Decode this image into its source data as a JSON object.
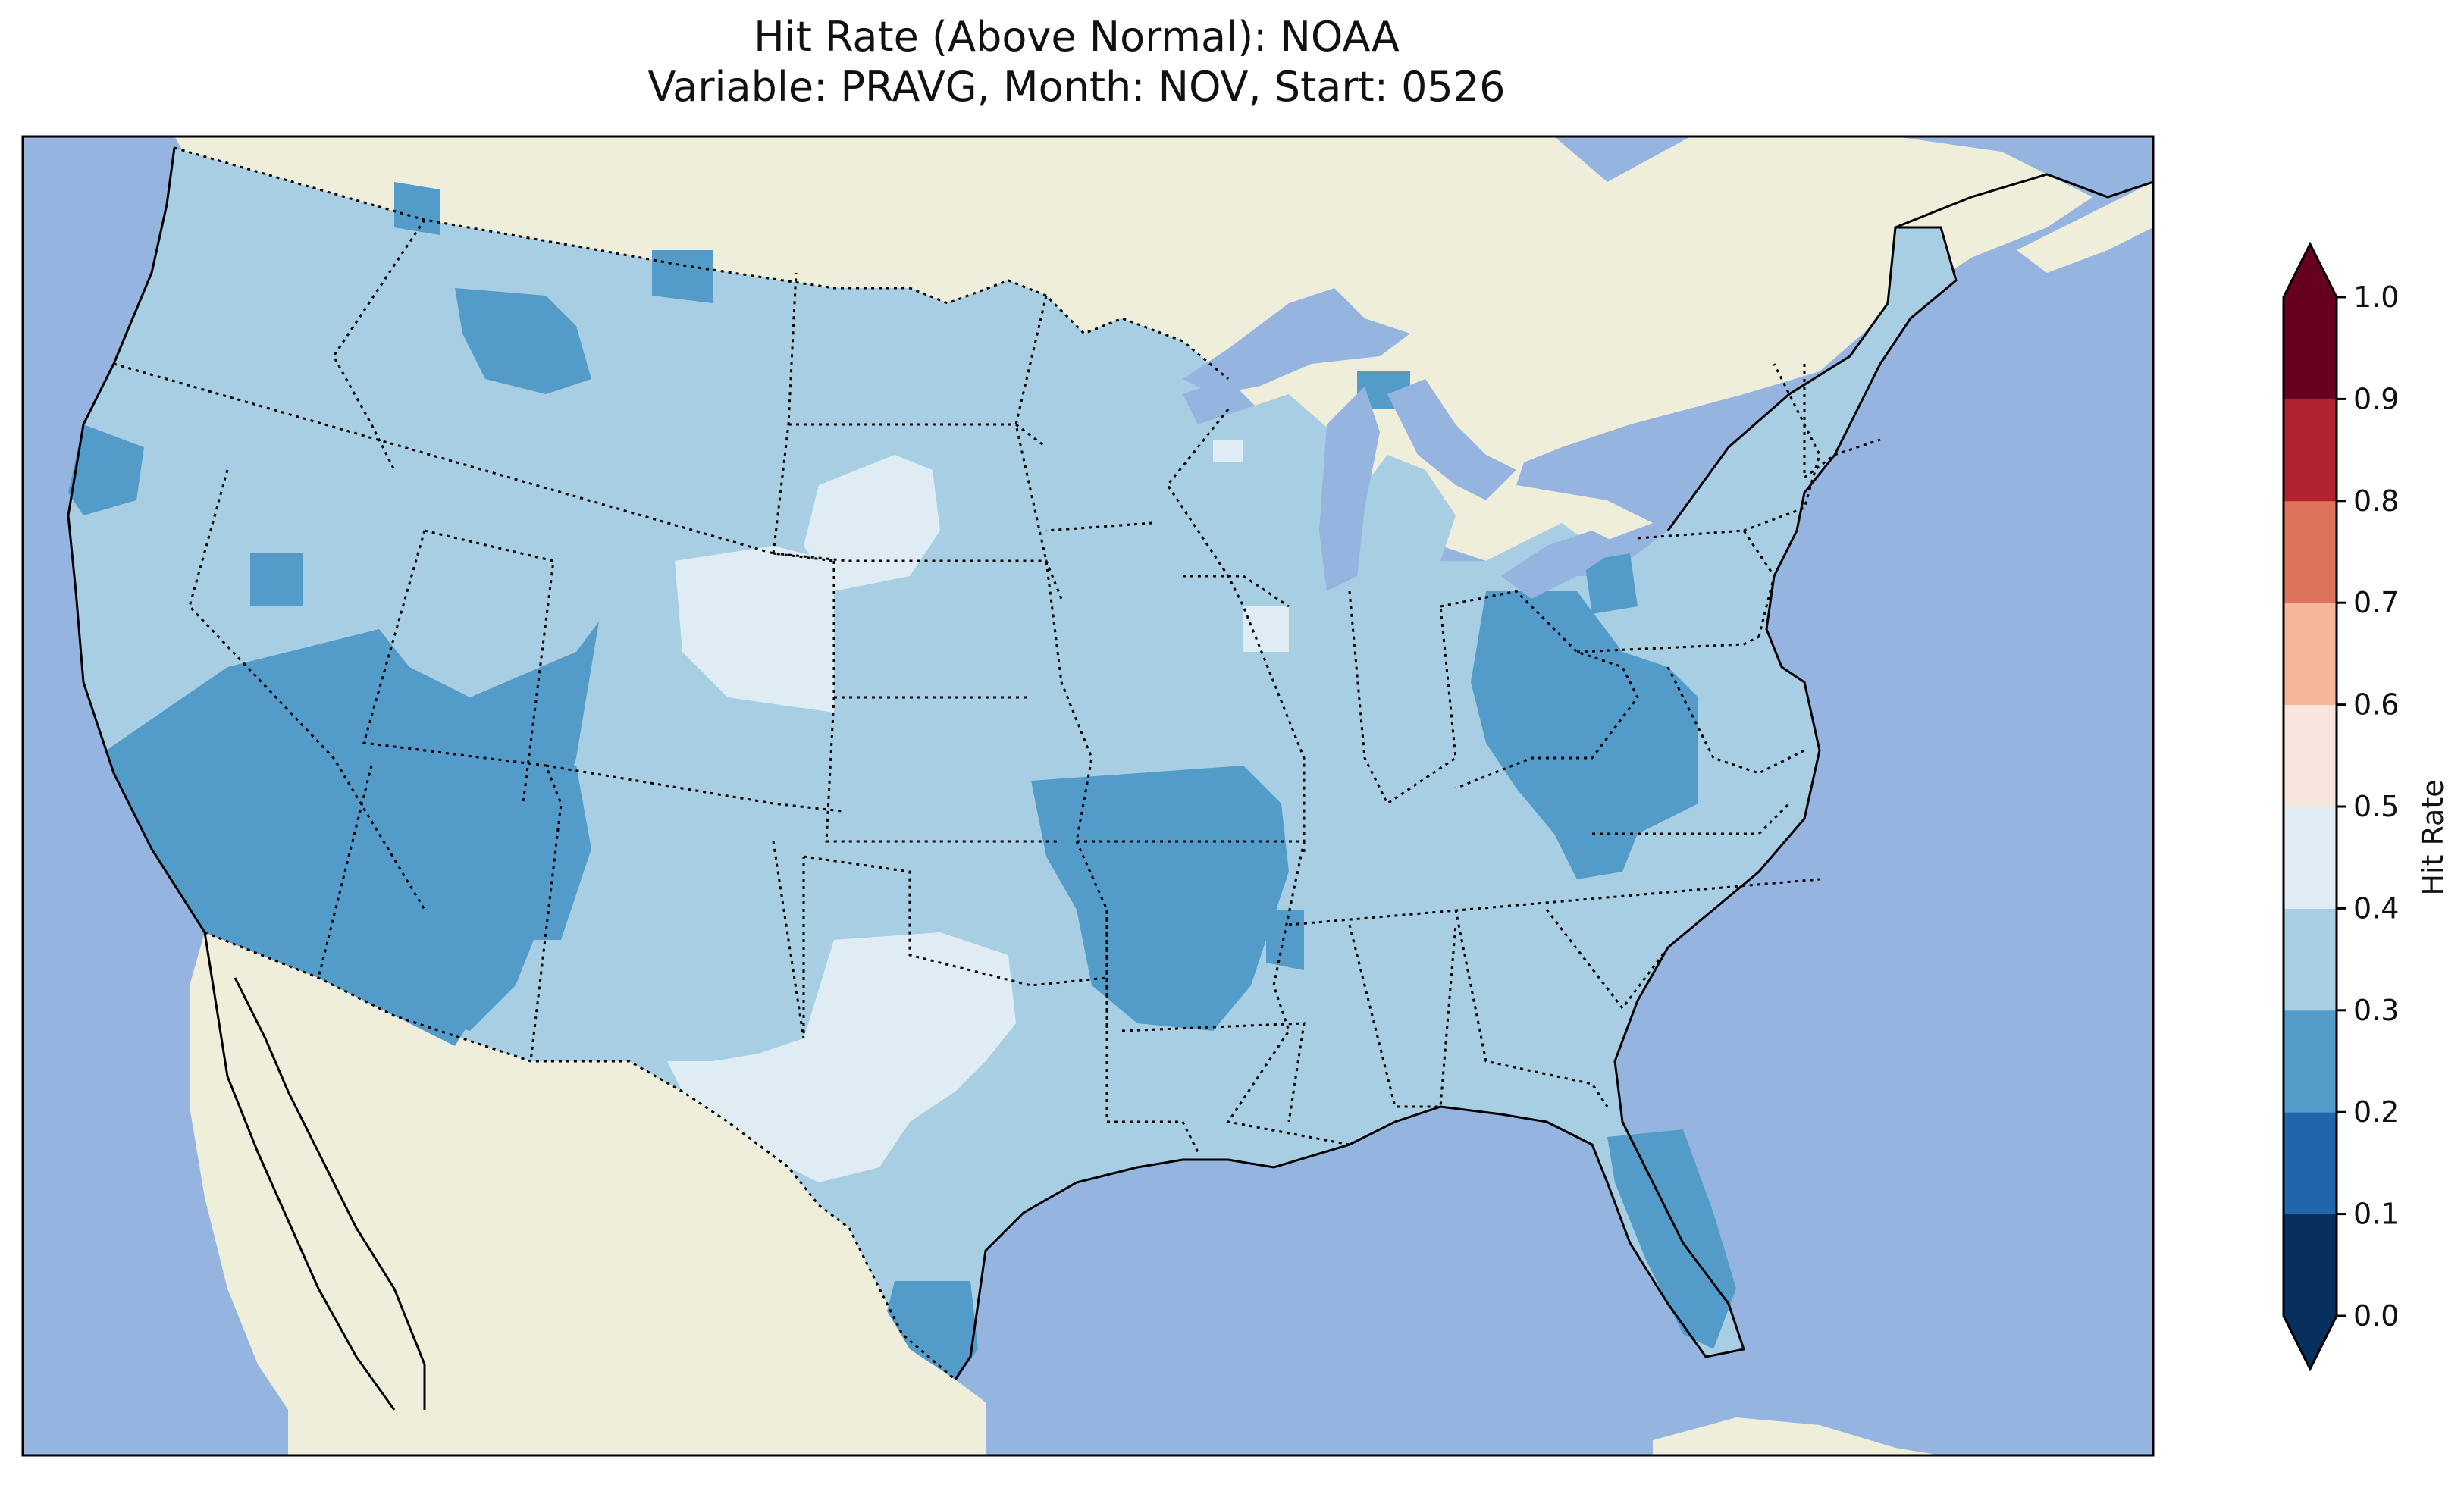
{
  "title": {
    "line1": "Hit Rate (Above Normal): NOAA",
    "line2": "Variable: PRAVG, Month: NOV, Start: 0526"
  },
  "colors": {
    "ocean": "#95b4e0",
    "land": "#efeedb",
    "lakes": "#95b4e0",
    "border": "#000000"
  },
  "colorbar": {
    "label": "Hit Rate",
    "ticks": [
      "0.0",
      "0.1",
      "0.2",
      "0.3",
      "0.4",
      "0.5",
      "0.6",
      "0.7",
      "0.8",
      "0.9",
      "1.0"
    ],
    "bins": [
      {
        "from": 0.0,
        "to": 0.1,
        "color": "#08305e"
      },
      {
        "from": 0.1,
        "to": 0.2,
        "color": "#2166ac"
      },
      {
        "from": 0.2,
        "to": 0.3,
        "color": "#539bc9"
      },
      {
        "from": 0.3,
        "to": 0.4,
        "color": "#a8cee3"
      },
      {
        "from": 0.4,
        "to": 0.5,
        "color": "#e0ecf4"
      },
      {
        "from": 0.5,
        "to": 0.6,
        "color": "#f8e6de"
      },
      {
        "from": 0.6,
        "to": 0.7,
        "color": "#f5b797"
      },
      {
        "from": 0.7,
        "to": 0.8,
        "color": "#dd735a"
      },
      {
        "from": 0.8,
        "to": 0.9,
        "color": "#b32230"
      },
      {
        "from": 0.9,
        "to": 1.0,
        "color": "#670020"
      }
    ],
    "under_color": "#08305e",
    "over_color": "#670020",
    "extend": "both"
  },
  "map_data": {
    "type": "choropleth-grid",
    "region": "Contiguous United States",
    "dominant_class": "0.3-0.4",
    "regions": [
      {
        "name": "Southwest (California, Nevada, Arizona)",
        "class": "0.2-0.3"
      },
      {
        "name": "Arkansas and Ozarks",
        "class": "0.2-0.3"
      },
      {
        "name": "Ohio Valley / West Virginia",
        "class": "0.2-0.3"
      },
      {
        "name": "Peninsular Florida",
        "class": "0.2-0.3"
      },
      {
        "name": "South Texas coast",
        "class": "0.2-0.3"
      },
      {
        "name": "Northern Idaho / Montana",
        "class": "0.2-0.3"
      },
      {
        "name": "Western Nebraska / Wyoming / South Dakota",
        "class": "0.4-0.5"
      },
      {
        "name": "West Texas / New Mexico",
        "class": "0.4-0.5"
      },
      {
        "name": "Great Plains, Midwest, Northeast, Southeast",
        "class": "0.3-0.4"
      }
    ]
  }
}
